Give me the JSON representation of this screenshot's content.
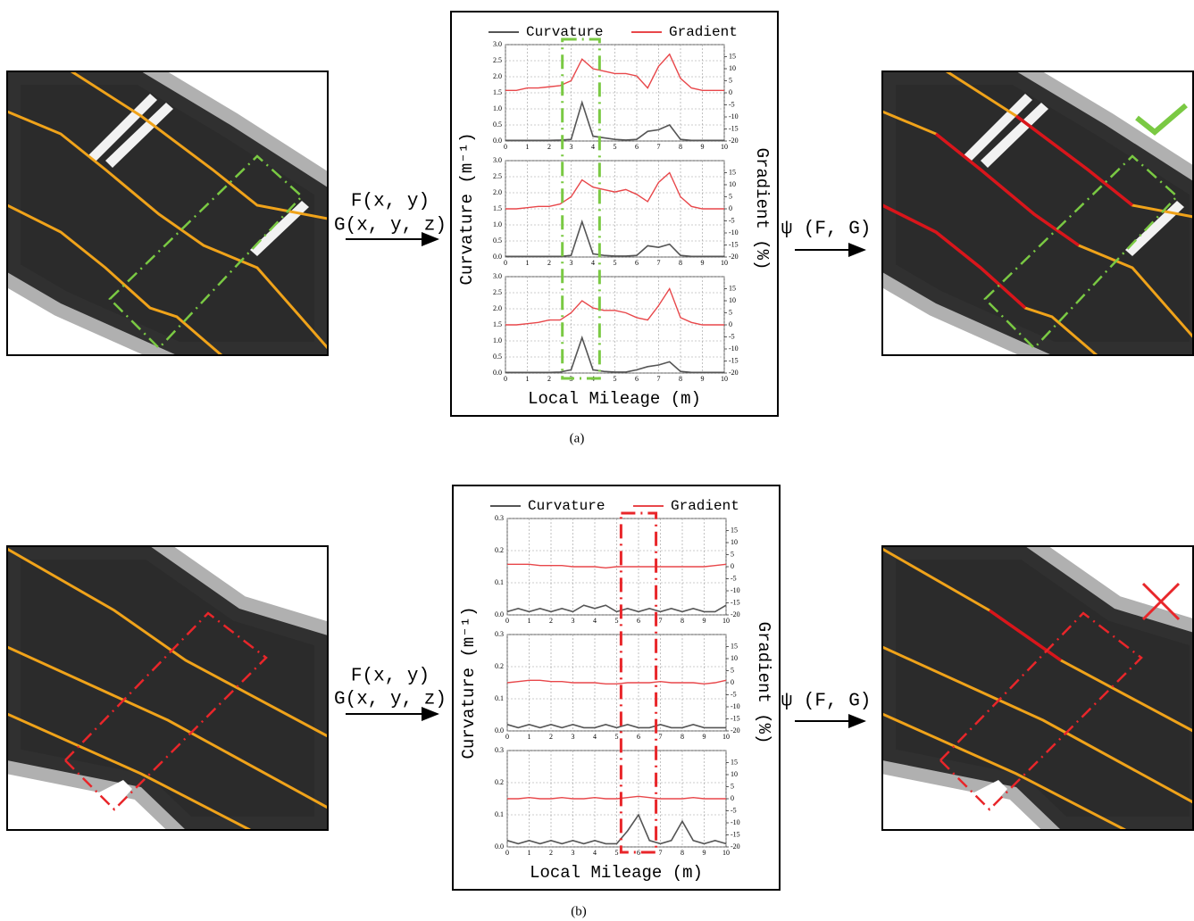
{
  "rows": [
    {
      "caption": "(a)",
      "arrow_in": [
        "F(x, y)",
        "G(x, y, z)"
      ],
      "arrow_out": "ψ (F, G)",
      "chart": {
        "series": [
          {
            "name": "Curvature",
            "color": "#555555"
          },
          {
            "name": "Gradient",
            "color": "#e8474a"
          }
        ],
        "x_label": "Local Mileage (m)",
        "y_label": "Curvature (m⁻¹)",
        "y2_label": "Gradient (%)",
        "xlim": [
          0,
          10
        ],
        "xticks": [
          0,
          1,
          2,
          3,
          4,
          5,
          6,
          7,
          8,
          9,
          10
        ],
        "ylim": [
          0,
          3
        ],
        "yticks": [
          {
            "value": 0,
            "label": "0.0"
          },
          {
            "value": 0.5,
            "label": "0.5"
          },
          {
            "value": 1,
            "label": "1.0"
          },
          {
            "value": 1.5,
            "label": "1.5"
          },
          {
            "value": 2,
            "label": "2.0"
          },
          {
            "value": 2.5,
            "label": "2.5"
          },
          {
            "value": 3,
            "label": "3.0"
          }
        ],
        "y2lim": [
          -20,
          20
        ],
        "y2ticks": [
          -20,
          -15,
          -10,
          -5,
          0,
          5,
          10,
          15
        ],
        "grid": true,
        "highlight": {
          "color": "#7ac943",
          "xlim": [
            2.6,
            4.3
          ]
        },
        "x": [
          0,
          0.5,
          1,
          1.5,
          2,
          2.5,
          3,
          3.5,
          4,
          4.5,
          5,
          5.5,
          6,
          6.5,
          7,
          7.5,
          8,
          8.5,
          9,
          9.5,
          10
        ],
        "panels": [
          {
            "curvature": [
              0.02,
              0.02,
              0.02,
              0.02,
              0.02,
              0.03,
              0.05,
              1.2,
              0.15,
              0.1,
              0.05,
              0.03,
              0.05,
              0.3,
              0.35,
              0.5,
              0.05,
              0.02,
              0.02,
              0.02,
              0.02
            ],
            "gradient": [
              1,
              1,
              2,
              2,
              2.5,
              3,
              5,
              14,
              10,
              9,
              8,
              8,
              7,
              2,
              11,
              16,
              6,
              2,
              1,
              1,
              1
            ]
          },
          {
            "curvature": [
              0.02,
              0.02,
              0.02,
              0.02,
              0.02,
              0.02,
              0.05,
              1.1,
              0.1,
              0.05,
              0.03,
              0.03,
              0.05,
              0.35,
              0.3,
              0.4,
              0.05,
              0.02,
              0.02,
              0.02,
              0.02
            ],
            "gradient": [
              0,
              0,
              0.5,
              1,
              1,
              2,
              5,
              12,
              9,
              8,
              7,
              8,
              6,
              3,
              11,
              15,
              5,
              1,
              0,
              0,
              0
            ]
          },
          {
            "curvature": [
              0.02,
              0.02,
              0.02,
              0.02,
              0.02,
              0.03,
              0.1,
              1.1,
              0.1,
              0.05,
              0.03,
              0.03,
              0.1,
              0.2,
              0.25,
              0.35,
              0.05,
              0.02,
              0.02,
              0.02,
              0.02
            ],
            "gradient": [
              0,
              0,
              0.5,
              1,
              2,
              2,
              5,
              10,
              7,
              6,
              6,
              5,
              3,
              2,
              8,
              15,
              3,
              1,
              0,
              0,
              0
            ]
          }
        ]
      }
    },
    {
      "caption": "(b)",
      "arrow_in": [
        "F(x, y)",
        "G(x, y, z)"
      ],
      "arrow_out": "ψ (F, G)",
      "chart": {
        "series": [
          {
            "name": "Curvature",
            "color": "#555555"
          },
          {
            "name": "Gradient",
            "color": "#e8474a"
          }
        ],
        "x_label": "Local Mileage (m)",
        "y_label": "Curvature (m⁻¹)",
        "y2_label": "Gradient (%)",
        "xlim": [
          0,
          10
        ],
        "xticks": [
          0,
          1,
          2,
          3,
          4,
          5,
          6,
          7,
          8,
          9,
          10
        ],
        "ylim": [
          0,
          0.3
        ],
        "yticks": [
          {
            "value": 0,
            "label": "0.0"
          },
          0.1,
          0.2,
          0.3
        ],
        "y2lim": [
          -20,
          20
        ],
        "y2ticks": [
          -20,
          -15,
          -10,
          -5,
          0,
          5,
          10,
          15
        ],
        "grid": true,
        "highlight": {
          "color": "#e8262a",
          "xlim": [
            5.2,
            6.8
          ]
        },
        "x": [
          0,
          0.5,
          1,
          1.5,
          2,
          2.5,
          3,
          3.5,
          4,
          4.5,
          5,
          5.5,
          6,
          6.5,
          7,
          7.5,
          8,
          8.5,
          9,
          9.5,
          10
        ],
        "panels": [
          {
            "curvature": [
              0.01,
              0.02,
              0.01,
              0.02,
              0.01,
              0.02,
              0.01,
              0.03,
              0.02,
              0.03,
              0.01,
              0.02,
              0.01,
              0.02,
              0.01,
              0.02,
              0.01,
              0.02,
              0.01,
              0.01,
              0.03
            ],
            "gradient": [
              1,
              1,
              1,
              0.5,
              0.5,
              0.5,
              0,
              0,
              0,
              -0.5,
              0,
              0,
              0,
              0,
              0,
              0,
              0,
              0,
              0,
              0.5,
              1
            ]
          },
          {
            "curvature": [
              0.02,
              0.01,
              0.02,
              0.01,
              0.02,
              0.01,
              0.02,
              0.01,
              0.01,
              0.02,
              0.01,
              0.02,
              0.01,
              0.01,
              0.02,
              0.01,
              0.01,
              0.02,
              0.01,
              0.01,
              0.01
            ],
            "gradient": [
              0,
              0.5,
              1,
              1,
              0.5,
              0.5,
              0,
              0,
              0,
              -0.5,
              -0.5,
              0,
              0,
              0,
              0.5,
              0,
              0,
              0,
              -0.5,
              0,
              1
            ]
          },
          {
            "curvature": [
              0.02,
              0.01,
              0.02,
              0.01,
              0.02,
              0.01,
              0.02,
              0.01,
              0.02,
              0.01,
              0.01,
              0.05,
              0.1,
              0.02,
              0.01,
              0.02,
              0.08,
              0.02,
              0.01,
              0.02,
              0.01
            ],
            "gradient": [
              0,
              0,
              0.5,
              0,
              0,
              0.5,
              0,
              0,
              0.5,
              0,
              0,
              0.5,
              1,
              0.5,
              0,
              0,
              0,
              0.5,
              0,
              0,
              0
            ]
          }
        ]
      }
    }
  ]
}
